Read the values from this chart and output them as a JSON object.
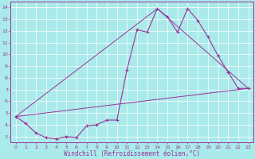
{
  "xlabel": "Windchill (Refroidissement éolien,°C)",
  "xlim": [
    -0.5,
    23.5
  ],
  "ylim": [
    2.5,
    14.5
  ],
  "yticks": [
    3,
    4,
    5,
    6,
    7,
    8,
    9,
    10,
    11,
    12,
    13,
    14
  ],
  "xticks": [
    0,
    1,
    2,
    3,
    4,
    5,
    6,
    7,
    8,
    9,
    10,
    11,
    12,
    13,
    14,
    15,
    16,
    17,
    18,
    19,
    20,
    21,
    22,
    23
  ],
  "bg_color": "#aaeaea",
  "line_color": "#993399",
  "line1_x": [
    0,
    1,
    2,
    3,
    4,
    5,
    6,
    7,
    8,
    9,
    10,
    11,
    12,
    13,
    14,
    15,
    16,
    17,
    18,
    19,
    20,
    21,
    22,
    23
  ],
  "line1_y": [
    4.7,
    4.1,
    3.3,
    2.9,
    2.8,
    3.0,
    2.9,
    3.9,
    4.0,
    4.4,
    4.4,
    8.7,
    12.1,
    11.9,
    13.9,
    13.2,
    11.9,
    13.9,
    12.9,
    11.5,
    9.9,
    8.5,
    7.1,
    7.1
  ],
  "line2_x": [
    0,
    23
  ],
  "line2_y": [
    4.7,
    7.1
  ],
  "line3_x": [
    0,
    14,
    23
  ],
  "line3_y": [
    4.7,
    13.9,
    7.1
  ],
  "grid_color": "#ffffff",
  "tick_fontsize": 4.5,
  "xlabel_fontsize": 5.5
}
